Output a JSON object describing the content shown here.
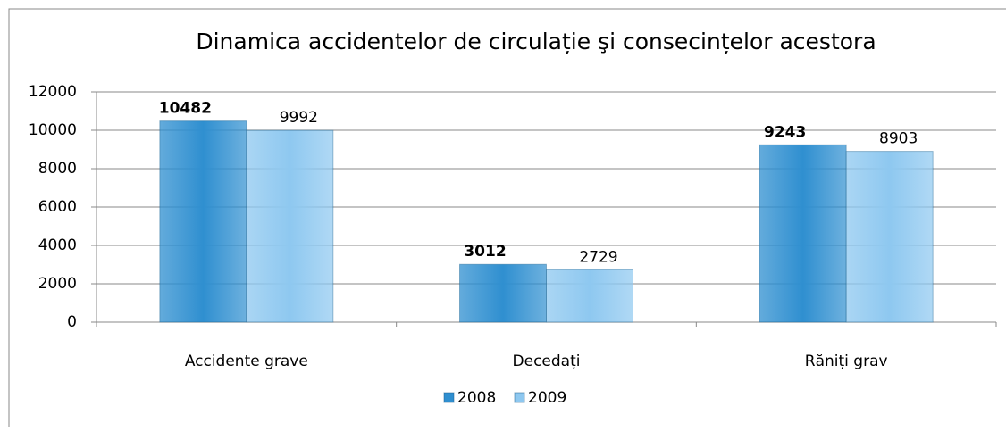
{
  "chart_data": {
    "type": "bar",
    "title": "Dinamica accidentelor de circulație şi consecințelor acestora",
    "categories": [
      "Accidente grave",
      "Decedați",
      "Răniți grav"
    ],
    "series": [
      {
        "name": "2008",
        "color": "#2f8fd0",
        "values": [
          10482,
          3012,
          9243
        ]
      },
      {
        "name": "2009",
        "color": "#8ec8f0",
        "values": [
          9992,
          2729,
          8903
        ]
      }
    ],
    "ylim": [
      0,
      12000
    ],
    "yticks": [
      0,
      2000,
      4000,
      6000,
      8000,
      10000,
      12000
    ],
    "grid": true,
    "legend": "bottom"
  }
}
